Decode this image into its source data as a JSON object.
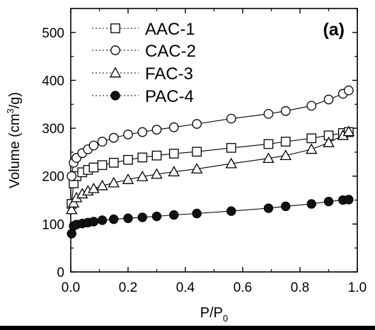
{
  "chart_data": {
    "type": "scatter",
    "panel_label": "(a)",
    "xlabel": "P/P",
    "xlabel_sub": "0",
    "ylabel_pre": "Volume (cm",
    "ylabel_sup": "3",
    "ylabel_post": "/g)",
    "xlim": [
      0.0,
      1.0
    ],
    "ylim": [
      0,
      550
    ],
    "xticks": [
      0.0,
      0.2,
      0.4,
      0.6,
      0.8,
      1.0
    ],
    "xtick_labels": [
      "0.0",
      "0.2",
      "0.4",
      "0.6",
      "0.8",
      "1.0"
    ],
    "yticks": [
      0,
      100,
      200,
      300,
      400,
      500
    ],
    "ytick_labels": [
      "0",
      "100",
      "200",
      "300",
      "400",
      "500"
    ],
    "grid": false,
    "legend_position": "top-left",
    "series": [
      {
        "name": "AAC-1",
        "marker": "square-open",
        "x": [
          0.003,
          0.01,
          0.02,
          0.04,
          0.06,
          0.08,
          0.11,
          0.15,
          0.2,
          0.25,
          0.3,
          0.36,
          0.44,
          0.56,
          0.69,
          0.75,
          0.84,
          0.9,
          0.95,
          0.97
        ],
        "y": [
          142,
          185,
          200,
          208,
          213,
          218,
          223,
          228,
          234,
          239,
          243,
          247,
          251,
          259,
          267,
          272,
          279,
          285,
          290,
          292
        ]
      },
      {
        "name": "CAC-2",
        "marker": "circle-open",
        "x": [
          0.003,
          0.01,
          0.02,
          0.04,
          0.06,
          0.08,
          0.11,
          0.15,
          0.2,
          0.25,
          0.3,
          0.36,
          0.44,
          0.56,
          0.69,
          0.75,
          0.84,
          0.9,
          0.95,
          0.97
        ],
        "y": [
          200,
          228,
          238,
          248,
          256,
          264,
          272,
          280,
          287,
          292,
          297,
          302,
          309,
          320,
          330,
          336,
          347,
          360,
          372,
          379
        ]
      },
      {
        "name": "FAC-3",
        "marker": "triangle-open",
        "x": [
          0.003,
          0.01,
          0.02,
          0.04,
          0.06,
          0.08,
          0.11,
          0.15,
          0.2,
          0.25,
          0.3,
          0.36,
          0.44,
          0.56,
          0.69,
          0.75,
          0.84,
          0.9,
          0.95,
          0.97
        ],
        "y": [
          130,
          144,
          155,
          163,
          169,
          174,
          180,
          186,
          193,
          199,
          204,
          209,
          215,
          226,
          237,
          243,
          256,
          270,
          285,
          293
        ]
      },
      {
        "name": "PAC-4",
        "marker": "circle-filled",
        "x": [
          0.003,
          0.01,
          0.02,
          0.04,
          0.06,
          0.08,
          0.11,
          0.15,
          0.2,
          0.25,
          0.3,
          0.36,
          0.44,
          0.56,
          0.69,
          0.75,
          0.84,
          0.9,
          0.95,
          0.97
        ],
        "y": [
          80,
          96,
          99,
          101,
          103,
          105,
          108,
          110,
          112,
          114,
          116,
          119,
          122,
          127,
          133,
          137,
          142,
          147,
          150,
          151
        ]
      }
    ]
  }
}
